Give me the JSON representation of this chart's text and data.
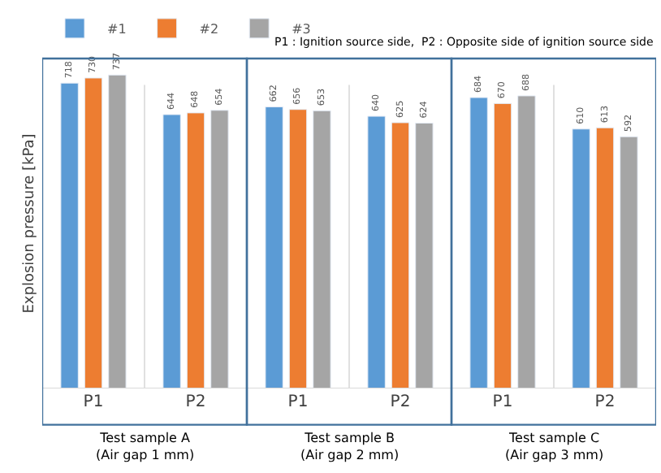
{
  "chart_data": {
    "type": "bar",
    "ylabel": "Explosion pressure [kPa]",
    "categories": [
      "P1",
      "P2",
      "P1",
      "P2",
      "P1",
      "P2"
    ],
    "series": [
      {
        "name": "#1",
        "color": "#5b9bd5",
        "values": [
          718,
          644,
          662,
          640,
          684,
          610
        ]
      },
      {
        "name": "#2",
        "color": "#ed7d31",
        "values": [
          730,
          648,
          656,
          625,
          670,
          613
        ]
      },
      {
        "name": "#3",
        "color": "#a5a5a5",
        "values": [
          737,
          654,
          653,
          624,
          688,
          592
        ]
      }
    ],
    "tick_labels": "x",
    "data_labels": true,
    "grid": "x",
    "legend": "top left",
    "annotations": [
      "P1 : Ignition source side,  P2 : Opposite side of ignition source side",
      "Test sample A\n(Air gap 1 mm)",
      "Test sample B\n(Air gap 2 mm)",
      "Test sample C\n(Air gap 3 mm)"
    ]
  }
}
